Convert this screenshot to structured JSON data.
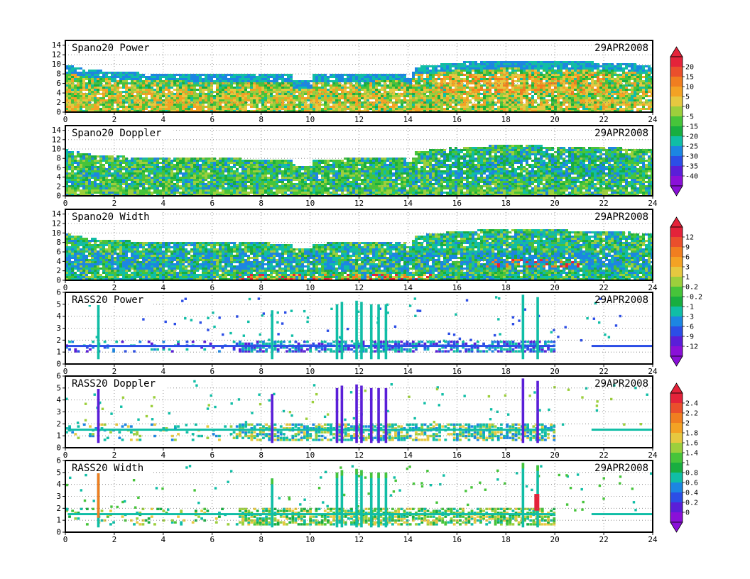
{
  "date_label": "29APR2008",
  "x_ticks": [
    "0",
    "2",
    "4",
    "6",
    "8",
    "10",
    "12",
    "14",
    "16",
    "18",
    "20",
    "22",
    "24"
  ],
  "colorbars": [
    {
      "name": "power-doppler",
      "labels": [
        "20",
        "15",
        "10",
        "5",
        "0",
        "-5",
        "-15",
        "-20",
        "-25",
        "-30",
        "-35",
        "-40"
      ],
      "colors": [
        "#e4233a",
        "#ea4f2c",
        "#f07e20",
        "#f3a224",
        "#e6c840",
        "#9ccf3c",
        "#46c43a",
        "#18ae40",
        "#10bea6",
        "#1c86e2",
        "#2c4ee6",
        "#5a1ed8",
        "#8a10d8"
      ]
    },
    {
      "name": "width",
      "labels": [
        "12",
        "9",
        "6",
        "3",
        "1",
        "0.2",
        "-0.2",
        "-1",
        "-3",
        "-6",
        "-9",
        "-12"
      ],
      "colors": [
        "#e4233a",
        "#ea4f2c",
        "#f07e20",
        "#f3a224",
        "#e6c840",
        "#9ccf3c",
        "#46c43a",
        "#18ae40",
        "#10bea6",
        "#1c86e2",
        "#2c4ee6",
        "#5a1ed8",
        "#8a10d8"
      ]
    },
    {
      "name": "rass-doppler",
      "labels": [
        "2.4",
        "2.2",
        "2",
        "1.8",
        "1.6",
        "1.4",
        "1",
        "0.8",
        "0.6",
        "0.4",
        "0.2",
        "0"
      ],
      "colors": [
        "#e4233a",
        "#ea4f2c",
        "#f07e20",
        "#f3a224",
        "#e6c840",
        "#9ccf3c",
        "#46c43a",
        "#18ae40",
        "#10bea6",
        "#1c86e2",
        "#2c4ee6",
        "#5a1ed8",
        "#8a10d8"
      ]
    }
  ],
  "chart_data": [
    {
      "type": "heatmap",
      "title": "Spano20 Power",
      "date": "29APR2008",
      "x_ticks": [
        0,
        2,
        4,
        6,
        8,
        10,
        12,
        14,
        16,
        18,
        20,
        22,
        24
      ],
      "y_ticks": [
        0,
        2,
        4,
        6,
        8,
        10,
        12,
        14
      ],
      "xlim": [
        0,
        24
      ],
      "ylim": [
        0,
        15
      ],
      "grid": true,
      "echo_top": [
        [
          0,
          9.6
        ],
        [
          1,
          8.6
        ],
        [
          3,
          8.0
        ],
        [
          6,
          7.8
        ],
        [
          9.2,
          7.6
        ],
        [
          9.3,
          6.3
        ],
        [
          10,
          6.3
        ],
        [
          10.1,
          7.6
        ],
        [
          12,
          7.8
        ],
        [
          13.8,
          8.0
        ],
        [
          13.9,
          7.0
        ],
        [
          14.1,
          7.0
        ],
        [
          14.2,
          9.2
        ],
        [
          16,
          10.2
        ],
        [
          18,
          10.6
        ],
        [
          20,
          10.4
        ],
        [
          22,
          10.2
        ],
        [
          24,
          9.6
        ]
      ]
    },
    {
      "type": "heatmap",
      "title": "Spano20 Doppler",
      "date": "29APR2008",
      "x_ticks": [
        0,
        2,
        4,
        6,
        8,
        10,
        12,
        14,
        16,
        18,
        20,
        22,
        24
      ],
      "y_ticks": [
        0,
        2,
        4,
        6,
        8,
        10,
        12,
        14
      ],
      "xlim": [
        0,
        24
      ],
      "ylim": [
        0,
        15
      ],
      "grid": true,
      "echo_top": [
        [
          0,
          9.6
        ],
        [
          1,
          8.6
        ],
        [
          3,
          8.0
        ],
        [
          6,
          7.8
        ],
        [
          9.2,
          7.6
        ],
        [
          9.3,
          6.3
        ],
        [
          10,
          6.3
        ],
        [
          10.1,
          7.6
        ],
        [
          12,
          7.8
        ],
        [
          13.8,
          8.0
        ],
        [
          13.9,
          7.0
        ],
        [
          14.1,
          7.0
        ],
        [
          14.2,
          9.2
        ],
        [
          16,
          10.2
        ],
        [
          18,
          10.6
        ],
        [
          20,
          10.4
        ],
        [
          22,
          10.2
        ],
        [
          24,
          9.6
        ]
      ]
    },
    {
      "type": "heatmap",
      "title": "Spano20 Width",
      "date": "29APR2008",
      "x_ticks": [
        0,
        2,
        4,
        6,
        8,
        10,
        12,
        14,
        16,
        18,
        20,
        22,
        24
      ],
      "y_ticks": [
        0,
        2,
        4,
        6,
        8,
        10,
        12,
        14
      ],
      "xlim": [
        0,
        24
      ],
      "ylim": [
        0,
        15
      ],
      "grid": true,
      "echo_top": [
        [
          0,
          9.6
        ],
        [
          1,
          8.6
        ],
        [
          3,
          8.0
        ],
        [
          6,
          7.8
        ],
        [
          9.2,
          7.6
        ],
        [
          9.3,
          6.3
        ],
        [
          10,
          6.3
        ],
        [
          10.1,
          7.6
        ],
        [
          12,
          7.8
        ],
        [
          13.8,
          8.0
        ],
        [
          13.9,
          7.0
        ],
        [
          14.1,
          7.0
        ],
        [
          14.2,
          9.2
        ],
        [
          16,
          10.2
        ],
        [
          18,
          10.6
        ],
        [
          20,
          10.4
        ],
        [
          22,
          10.2
        ],
        [
          24,
          9.6
        ]
      ]
    },
    {
      "type": "heatmap",
      "title": "RASS20 Power",
      "date": "29APR2008",
      "x_ticks": [
        0,
        2,
        4,
        6,
        8,
        10,
        12,
        14,
        16,
        18,
        20,
        22,
        24
      ],
      "y_ticks": [
        0,
        1,
        2,
        3,
        4,
        5,
        6
      ],
      "xlim": [
        0,
        24
      ],
      "ylim": [
        0,
        6
      ],
      "grid": true,
      "base_layer": [
        [
          0,
          20,
          1.0,
          1.9
        ]
      ],
      "columns": [
        [
          1.35,
          5.8
        ],
        [
          8.45,
          4.5
        ],
        [
          11.1,
          5.0
        ],
        [
          11.3,
          5.2
        ],
        [
          11.9,
          5.3
        ],
        [
          12.1,
          5.2
        ],
        [
          12.5,
          5.0
        ],
        [
          12.8,
          5.0
        ],
        [
          13.1,
          5.0
        ],
        [
          18.7,
          5.8
        ],
        [
          19.3,
          5.6
        ]
      ]
    },
    {
      "type": "heatmap",
      "title": "RASS20 Doppler",
      "date": "29APR2008",
      "x_ticks": [
        0,
        2,
        4,
        6,
        8,
        10,
        12,
        14,
        16,
        18,
        20,
        22,
        24
      ],
      "y_ticks": [
        0,
        1,
        2,
        3,
        4,
        5,
        6
      ],
      "xlim": [
        0,
        24
      ],
      "ylim": [
        0,
        6
      ],
      "grid": true,
      "base_layer": [
        [
          0,
          20,
          0.6,
          1.9
        ]
      ],
      "columns": [
        [
          1.35,
          5.8
        ],
        [
          8.45,
          4.5
        ],
        [
          11.1,
          5.0
        ],
        [
          11.3,
          5.2
        ],
        [
          11.9,
          5.3
        ],
        [
          12.1,
          5.2
        ],
        [
          12.5,
          5.0
        ],
        [
          12.8,
          5.0
        ],
        [
          13.1,
          5.0
        ],
        [
          18.7,
          5.8
        ],
        [
          19.3,
          5.6
        ]
      ]
    },
    {
      "type": "heatmap",
      "title": "RASS20 Width",
      "date": "29APR2008",
      "x_ticks": [
        0,
        2,
        4,
        6,
        8,
        10,
        12,
        14,
        16,
        18,
        20,
        22,
        24
      ],
      "y_ticks": [
        0,
        1,
        2,
        3,
        4,
        5,
        6
      ],
      "xlim": [
        0,
        24
      ],
      "ylim": [
        0,
        6
      ],
      "grid": true,
      "base_layer": [
        [
          0,
          20,
          0.6,
          1.9
        ]
      ],
      "columns": [
        [
          1.35,
          5.8
        ],
        [
          8.45,
          4.5
        ],
        [
          11.1,
          5.0
        ],
        [
          11.3,
          5.2
        ],
        [
          11.9,
          5.3
        ],
        [
          12.1,
          5.2
        ],
        [
          12.5,
          5.0
        ],
        [
          12.8,
          5.0
        ],
        [
          13.1,
          5.0
        ],
        [
          18.7,
          5.8
        ],
        [
          19.3,
          5.6
        ]
      ]
    }
  ]
}
